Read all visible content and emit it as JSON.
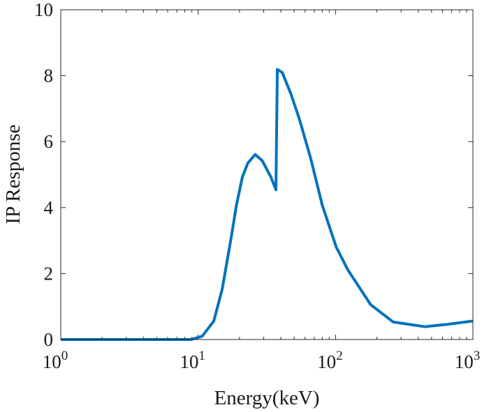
{
  "chart_data": {
    "type": "line",
    "title": "",
    "xlabel": "Energy(keV)",
    "ylabel": "IP Response",
    "xscale": "log",
    "xlim": [
      1,
      1000
    ],
    "ylim": [
      0,
      10
    ],
    "grid": false,
    "x_ticks": [
      {
        "base": "10",
        "exp": "0",
        "value": 1
      },
      {
        "base": "10",
        "exp": "1",
        "value": 10
      },
      {
        "base": "10",
        "exp": "2",
        "value": 100
      },
      {
        "base": "10",
        "exp": "3",
        "value": 1000
      }
    ],
    "y_ticks": [
      "0",
      "2",
      "4",
      "6",
      "8",
      "10"
    ],
    "series": [
      {
        "name": "IP Response",
        "color": "#0072BD",
        "x": [
          1,
          2,
          5,
          8.9,
          10.7,
          13,
          15,
          17.4,
          19,
          21,
          23,
          26,
          29.3,
          33.8,
          36.8,
          37.7,
          40.9,
          47.2,
          54.5,
          66,
          79.9,
          101,
          123,
          180,
          263,
          446,
          653,
          1000
        ],
        "y": [
          0,
          0,
          0,
          0,
          0.1,
          0.56,
          1.55,
          3.1,
          4.08,
          4.93,
          5.35,
          5.61,
          5.42,
          4.93,
          4.54,
          8.19,
          8.1,
          7.46,
          6.69,
          5.49,
          4.08,
          2.81,
          2.11,
          1.06,
          0.53,
          0.39,
          0.46,
          0.56
        ]
      }
    ]
  }
}
